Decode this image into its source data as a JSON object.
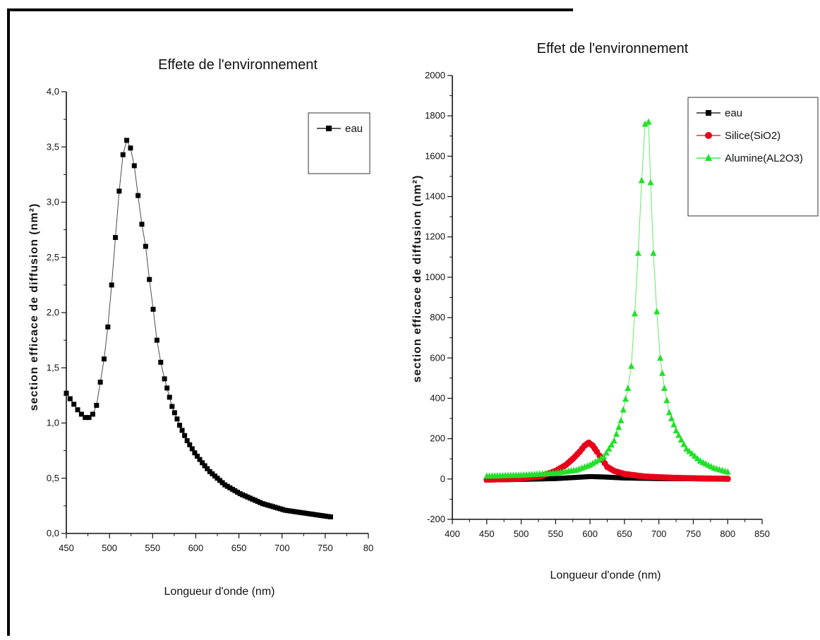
{
  "chart_data": [
    {
      "type": "scatter",
      "title": "Effete de l'environnement",
      "xlabel": "Longueur d'onde (nm)",
      "ylabel": "section efficace de diffusion (nm²)",
      "xlim": [
        450,
        850
      ],
      "ylim": [
        0,
        4
      ],
      "x_ticks": [
        "450",
        "500",
        "550",
        "600",
        "650",
        "700",
        "750",
        "80"
      ],
      "y_ticks": [
        "0,0",
        "0,5",
        "1,0",
        "1,5",
        "2,0",
        "2,5",
        "3,0",
        "3,5",
        "4,0"
      ],
      "legend_position": "top-right",
      "series": [
        {
          "name": "eau",
          "color": "#000000",
          "marker": "square",
          "points": [
            [
              450,
              1.27
            ],
            [
              455,
              1.22
            ],
            [
              460,
              1.17
            ],
            [
              465,
              1.12
            ],
            [
              470,
              1.08
            ],
            [
              475,
              1.05
            ],
            [
              480,
              1.05
            ],
            [
              485,
              1.08
            ],
            [
              490,
              1.16
            ],
            [
              495,
              1.37
            ],
            [
              500,
              1.58
            ],
            [
              505,
              1.87
            ],
            [
              510,
              2.25
            ],
            [
              515,
              2.68
            ],
            [
              520,
              3.1
            ],
            [
              525,
              3.43
            ],
            [
              530,
              3.56
            ],
            [
              535,
              3.49
            ],
            [
              540,
              3.33
            ],
            [
              545,
              3.06
            ],
            [
              550,
              2.8
            ],
            [
              555,
              2.6
            ],
            [
              560,
              2.3
            ],
            [
              565,
              2.03
            ],
            [
              570,
              1.75
            ],
            [
              575,
              1.55
            ],
            [
              580,
              1.4
            ],
            [
              590,
              1.15
            ],
            [
              600,
              0.98
            ],
            [
              610,
              0.84
            ],
            [
              620,
              0.73
            ],
            [
              630,
              0.64
            ],
            [
              640,
              0.56
            ],
            [
              650,
              0.5
            ],
            [
              660,
              0.44
            ],
            [
              670,
              0.4
            ],
            [
              680,
              0.36
            ],
            [
              690,
              0.33
            ],
            [
              700,
              0.3
            ],
            [
              710,
              0.27
            ],
            [
              720,
              0.25
            ],
            [
              730,
              0.23
            ],
            [
              740,
              0.21
            ],
            [
              750,
              0.2
            ],
            [
              760,
              0.19
            ],
            [
              770,
              0.18
            ],
            [
              780,
              0.17
            ],
            [
              790,
              0.16
            ],
            [
              800,
              0.15
            ]
          ]
        }
      ]
    },
    {
      "type": "scatter",
      "title": "Effet de l'environnement",
      "xlabel": "Longueur d'onde (nm)",
      "ylabel": "section efficace de diffusion (nm²)",
      "xlim": [
        400,
        850
      ],
      "ylim": [
        -200,
        2000
      ],
      "x_ticks": [
        "400",
        "450",
        "500",
        "550",
        "600",
        "650",
        "700",
        "750",
        "800",
        "850"
      ],
      "y_ticks": [
        "-200",
        "0",
        "200",
        "400",
        "600",
        "800",
        "1000",
        "1200",
        "1400",
        "1600",
        "1800",
        "2000"
      ],
      "legend_position": "top-right",
      "series": [
        {
          "name": "eau",
          "color": "#000000",
          "marker": "square",
          "points": [
            [
              450,
              -5
            ],
            [
              500,
              -2
            ],
            [
              550,
              2
            ],
            [
              580,
              8
            ],
            [
              600,
              12
            ],
            [
              620,
              10
            ],
            [
              650,
              5
            ],
            [
              700,
              2
            ],
            [
              750,
              1
            ],
            [
              800,
              0
            ]
          ]
        },
        {
          "name": "Silice(SiO2)",
          "color": "#e8001a",
          "marker": "circle",
          "points": [
            [
              450,
              -3
            ],
            [
              500,
              2
            ],
            [
              530,
              15
            ],
            [
              550,
              40
            ],
            [
              565,
              70
            ],
            [
              575,
              100
            ],
            [
              585,
              135
            ],
            [
              592,
              165
            ],
            [
              598,
              180
            ],
            [
              604,
              165
            ],
            [
              610,
              135
            ],
            [
              618,
              95
            ],
            [
              625,
              60
            ],
            [
              635,
              40
            ],
            [
              650,
              25
            ],
            [
              680,
              12
            ],
            [
              720,
              6
            ],
            [
              760,
              3
            ],
            [
              800,
              1
            ]
          ]
        },
        {
          "name": "Alumine(AL2O3)",
          "color": "#22e02a",
          "marker": "triangle",
          "points": [
            [
              450,
              15
            ],
            [
              500,
              20
            ],
            [
              550,
              30
            ],
            [
              580,
              45
            ],
            [
              600,
              70
            ],
            [
              620,
              110
            ],
            [
              635,
              190
            ],
            [
              645,
              290
            ],
            [
              655,
              450
            ],
            [
              660,
              560
            ],
            [
              665,
              820
            ],
            [
              670,
              1120
            ],
            [
              675,
              1480
            ],
            [
              680,
              1760
            ],
            [
              685,
              1770
            ],
            [
              688,
              1470
            ],
            [
              692,
              1120
            ],
            [
              697,
              830
            ],
            [
              702,
              600
            ],
            [
              708,
              450
            ],
            [
              715,
              330
            ],
            [
              725,
              240
            ],
            [
              740,
              150
            ],
            [
              760,
              90
            ],
            [
              780,
              55
            ],
            [
              800,
              35
            ]
          ]
        }
      ]
    }
  ]
}
